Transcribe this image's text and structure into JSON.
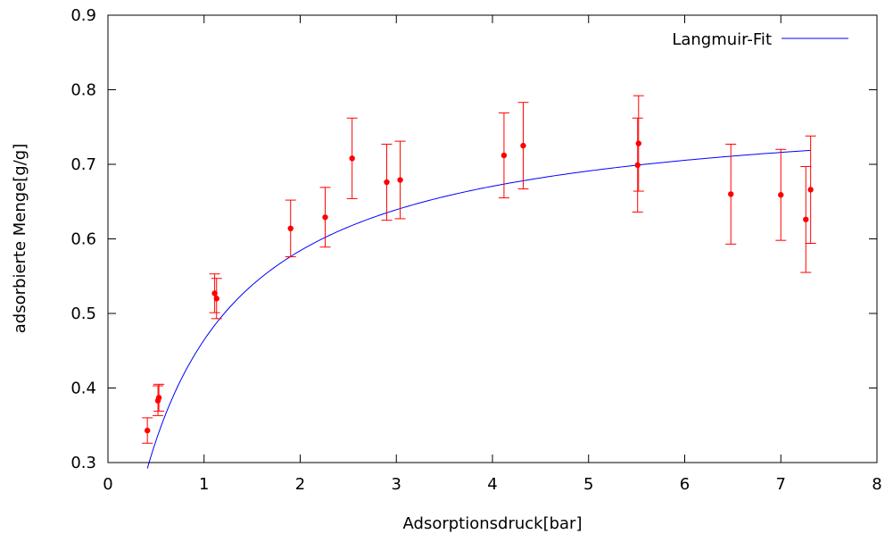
{
  "chart_data": {
    "type": "scatter",
    "xlabel": "Adsorptionsdruck[bar]",
    "ylabel": "adsorbierte Menge[g/g]",
    "xlim": [
      0,
      8
    ],
    "ylim": [
      0.3,
      0.9
    ],
    "xticks": [
      "0",
      "1",
      "2",
      "3",
      "4",
      "5",
      "6",
      "7",
      "8"
    ],
    "yticks": [
      "0.3",
      "0.4",
      "0.5",
      "0.6",
      "0.7",
      "0.8",
      "0.9"
    ],
    "grid": false,
    "legend_position": "top-right",
    "colors": {
      "points": "#ff0000",
      "fit": "#0000ff"
    },
    "series": [
      {
        "kind": "points-with-errorbars",
        "points": [
          {
            "x": 0.41,
            "y": 0.343,
            "err": 0.017
          },
          {
            "x": 0.52,
            "y": 0.383,
            "err": 0.02
          },
          {
            "x": 0.53,
            "y": 0.387,
            "err": 0.018
          },
          {
            "x": 1.11,
            "y": 0.527,
            "err": 0.026
          },
          {
            "x": 1.13,
            "y": 0.52,
            "err": 0.027
          },
          {
            "x": 1.9,
            "y": 0.614,
            "err": 0.038
          },
          {
            "x": 2.26,
            "y": 0.629,
            "err": 0.04
          },
          {
            "x": 2.54,
            "y": 0.708,
            "err": 0.054
          },
          {
            "x": 2.9,
            "y": 0.676,
            "err": 0.051
          },
          {
            "x": 3.04,
            "y": 0.679,
            "err": 0.052
          },
          {
            "x": 4.12,
            "y": 0.712,
            "err": 0.057
          },
          {
            "x": 4.32,
            "y": 0.725,
            "err": 0.058
          },
          {
            "x": 5.51,
            "y": 0.699,
            "err": 0.063
          },
          {
            "x": 5.52,
            "y": 0.728,
            "err": 0.064
          },
          {
            "x": 6.48,
            "y": 0.66,
            "err": 0.067
          },
          {
            "x": 7.0,
            "y": 0.659,
            "err": 0.061
          },
          {
            "x": 7.26,
            "y": 0.626,
            "err": 0.071
          },
          {
            "x": 7.31,
            "y": 0.666,
            "err": 0.072
          }
        ]
      },
      {
        "kind": "fit-line",
        "name": "Langmuir-Fit",
        "xrange": [
          0.41,
          7.31
        ],
        "model": {
          "qmax": 0.787,
          "K": 1.44
        }
      }
    ]
  }
}
